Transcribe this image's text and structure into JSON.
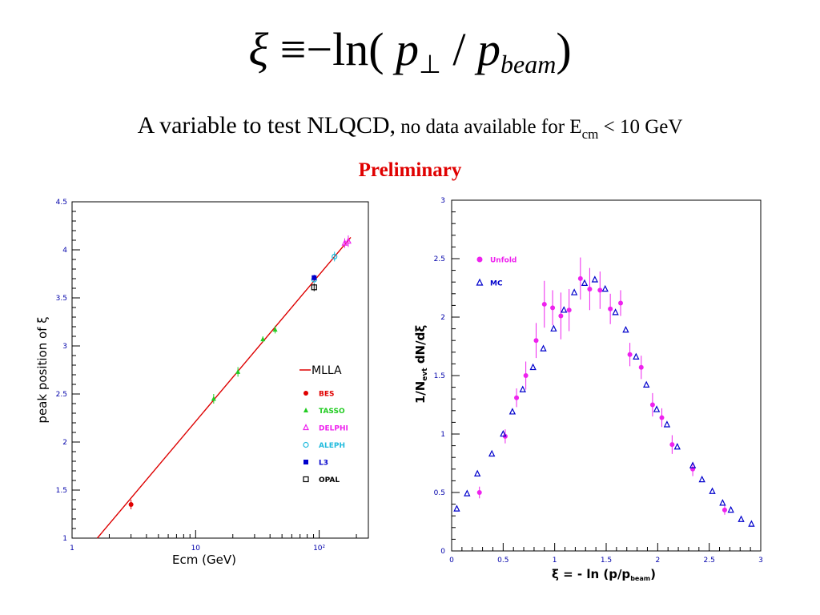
{
  "header": {
    "formula_xi": "ξ",
    "formula_equiv": "≡",
    "formula_rest": "−ln(",
    "formula_p": "p",
    "formula_perp": "⊥",
    "formula_slash": " / ",
    "formula_p2": "p",
    "formula_beam": "beam",
    "formula_close": ")",
    "subtitle_main": "A variable to test NLQCD,",
    "subtitle_note": " no data available for E",
    "subtitle_sub": "cm",
    "subtitle_tail": " < 10 GeV",
    "preliminary": "Preliminary"
  },
  "colors": {
    "tick_label": "#0000aa",
    "mlla": "#dd0000",
    "bes": "#e00000",
    "tasso": "#22cc22",
    "delphi": "#ee22ee",
    "aleph": "#22bbdd",
    "l3": "#0000cc",
    "opal": "#000000",
    "unfold": "#ee22ee",
    "mc": "#0000cc",
    "preliminary": "#e00000"
  },
  "chart_data": [
    {
      "type": "scatter",
      "xlabel": "Ecm (GeV)",
      "ylabel": "peak position of ξ",
      "xscale": "log",
      "xlim": [
        1,
        250
      ],
      "ylim": [
        1,
        4.5
      ],
      "xticklabels": [
        {
          "value": 1,
          "label": "1"
        },
        {
          "value": 10,
          "label": "10"
        },
        {
          "value": 100,
          "label": "10²"
        }
      ],
      "yticklabels": [
        "1",
        "1.5",
        "2",
        "2.5",
        "3",
        "3.5",
        "4",
        "4.5"
      ],
      "yticks": [
        1,
        1.5,
        2,
        2.5,
        3,
        3.5,
        4,
        4.5
      ],
      "legend_position": "right",
      "series": [
        {
          "name": "MLLA",
          "kind": "line",
          "color_key": "mlla",
          "points": [
            [
              1.6,
              1.0
            ],
            [
              180,
              4.13
            ]
          ]
        },
        {
          "name": "BES",
          "kind": "marker",
          "marker": "circle",
          "color_key": "bes",
          "points": [
            [
              3.0,
              1.35,
              0.05
            ]
          ]
        },
        {
          "name": "TASSO",
          "kind": "marker",
          "marker": "triangle",
          "color_key": "tasso",
          "points": [
            [
              14,
              2.45,
              0.05
            ],
            [
              22,
              2.73,
              0.05
            ],
            [
              35,
              3.07,
              0.03
            ],
            [
              44,
              3.17,
              0.04
            ]
          ]
        },
        {
          "name": "DELPHI",
          "kind": "marker",
          "marker": "triangle-open",
          "color_key": "delphi",
          "points": [
            [
              161,
              4.07,
              0.05
            ],
            [
              172,
              4.09,
              0.06
            ]
          ]
        },
        {
          "name": "ALEPH",
          "kind": "marker",
          "marker": "circle-open",
          "color_key": "aleph",
          "points": [
            [
              133,
              3.93,
              0.05
            ],
            [
              91,
              3.69,
              0.03
            ]
          ]
        },
        {
          "name": "L3",
          "kind": "marker",
          "marker": "square",
          "color_key": "l3",
          "points": [
            [
              91,
              3.71,
              0.03
            ]
          ]
        },
        {
          "name": "OPAL",
          "kind": "marker",
          "marker": "square-open",
          "color_key": "opal",
          "points": [
            [
              91,
              3.61,
              0.04
            ]
          ]
        }
      ]
    },
    {
      "type": "scatter",
      "xlabel": "ξ  = - ln (p/p",
      "xlabel_sub": "beam",
      "xlabel_end": ")",
      "ylabel_pre": "1/N",
      "ylabel_sub": "evt",
      "ylabel_post": " dN/dξ",
      "xlim": [
        0,
        3
      ],
      "ylim": [
        0,
        3
      ],
      "xticks": [
        0,
        0.5,
        1,
        1.5,
        2,
        2.5,
        3
      ],
      "xticklabels": [
        "0",
        "0.5",
        "1",
        "1.5",
        "2",
        "2.5",
        "3"
      ],
      "yticks": [
        0,
        0.5,
        1,
        1.5,
        2,
        2.5,
        3
      ],
      "yticklabels": [
        "0",
        "0.5",
        "1",
        "1.5",
        "2",
        "2.5",
        "3"
      ],
      "legend_position": "top-left",
      "series": [
        {
          "name": "Unfold",
          "marker": "circle",
          "color_key": "unfold",
          "points": [
            [
              0.27,
              0.5,
              0.05
            ],
            [
              0.52,
              0.98,
              0.06
            ],
            [
              0.63,
              1.31,
              0.08
            ],
            [
              0.72,
              1.5,
              0.12
            ],
            [
              0.82,
              1.8,
              0.15
            ],
            [
              0.9,
              2.11,
              0.2
            ],
            [
              0.98,
              2.08,
              0.15
            ],
            [
              1.06,
              2.01,
              0.2
            ],
            [
              1.14,
              2.06,
              0.18
            ],
            [
              1.25,
              2.33,
              0.18
            ],
            [
              1.34,
              2.24,
              0.18
            ],
            [
              1.44,
              2.23,
              0.16
            ],
            [
              1.54,
              2.07,
              0.13
            ],
            [
              1.64,
              2.12,
              0.11
            ],
            [
              1.73,
              1.68,
              0.1
            ],
            [
              1.84,
              1.57,
              0.1
            ],
            [
              1.95,
              1.25,
              0.1
            ],
            [
              2.04,
              1.14,
              0.08
            ],
            [
              2.14,
              0.91,
              0.08
            ],
            [
              2.34,
              0.7,
              0.06
            ],
            [
              2.65,
              0.35,
              0.04
            ]
          ]
        },
        {
          "name": "MC",
          "marker": "triangle-open",
          "color_key": "mc",
          "points": [
            [
              0.05,
              0.36
            ],
            [
              0.15,
              0.49
            ],
            [
              0.25,
              0.66
            ],
            [
              0.39,
              0.83
            ],
            [
              0.5,
              1.0
            ],
            [
              0.59,
              1.19
            ],
            [
              0.69,
              1.38
            ],
            [
              0.79,
              1.57
            ],
            [
              0.89,
              1.73
            ],
            [
              0.99,
              1.9
            ],
            [
              1.09,
              2.06
            ],
            [
              1.19,
              2.21
            ],
            [
              1.29,
              2.29
            ],
            [
              1.39,
              2.32
            ],
            [
              1.49,
              2.24
            ],
            [
              1.59,
              2.04
            ],
            [
              1.69,
              1.89
            ],
            [
              1.79,
              1.66
            ],
            [
              1.89,
              1.42
            ],
            [
              1.99,
              1.21
            ],
            [
              2.09,
              1.08
            ],
            [
              2.19,
              0.89
            ],
            [
              2.34,
              0.73
            ],
            [
              2.43,
              0.61
            ],
            [
              2.53,
              0.51
            ],
            [
              2.63,
              0.41
            ],
            [
              2.71,
              0.35
            ],
            [
              2.81,
              0.27
            ],
            [
              2.91,
              0.23
            ]
          ]
        }
      ]
    }
  ]
}
